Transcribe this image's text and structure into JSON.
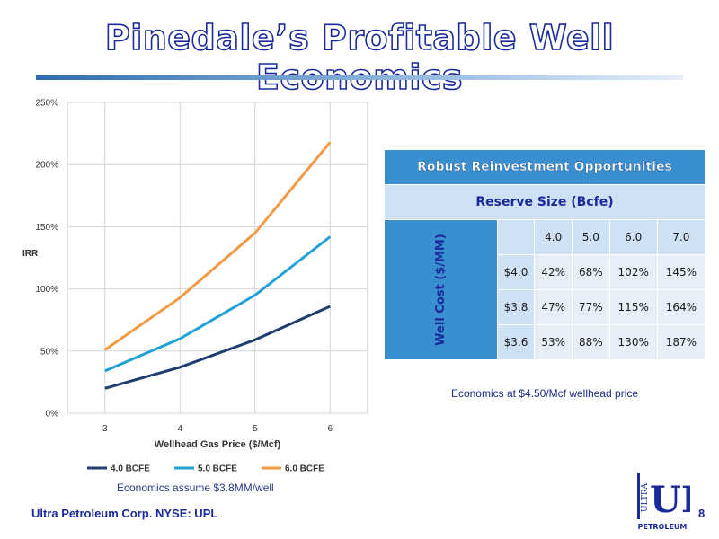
{
  "title": "Pinedale’s Profitable Well Economics",
  "chart_data": {
    "type": "line",
    "x": [
      3,
      4,
      5,
      6
    ],
    "xlabel": "Wellhead Gas Price ($/Mcf)",
    "ylabel": "IRR",
    "ylim": [
      0,
      250
    ],
    "yticks": [
      "0%",
      "50%",
      "100%",
      "150%",
      "200%",
      "250%"
    ],
    "xticks": [
      "3",
      "4",
      "5",
      "6"
    ],
    "grid": true,
    "legend_position": "bottom",
    "series": [
      {
        "name": "4.0 BCFE",
        "color": "#1f3d6e",
        "values": [
          20,
          37,
          59,
          86
        ]
      },
      {
        "name": "5.0 BCFE",
        "color": "#1ea0d8",
        "values": [
          34,
          60,
          95,
          142
        ]
      },
      {
        "name": "6.0 BCFE",
        "color": "#f39a45",
        "values": [
          51,
          93,
          145,
          218
        ]
      }
    ]
  },
  "chart_note": "Economics assume $3.8MM/well",
  "table": {
    "title": "Robust Reinvestment Opportunities",
    "subtitle": "Reserve Size (Bcfe)",
    "row_axis_label": "Well Cost ($/MM)",
    "columns": [
      "4.0",
      "5.0",
      "6.0",
      "7.0"
    ],
    "rows": [
      {
        "label": "$4.0",
        "values": [
          "42%",
          "68%",
          "102%",
          "145%"
        ]
      },
      {
        "label": "$3.8",
        "values": [
          "47%",
          "77%",
          "115%",
          "164%"
        ]
      },
      {
        "label": "$3.6",
        "values": [
          "53%",
          "88%",
          "130%",
          "187%"
        ]
      }
    ]
  },
  "table_note": "Economics at $4.50/Mcf wellhead price",
  "footer": "Ultra Petroleum Corp. NYSE: UPL",
  "page_number": "8",
  "logo": {
    "text_side": "ULTRA",
    "text_main": "UP",
    "text_bottom": "PETROLEUM",
    "color": "#1a2a9a"
  }
}
